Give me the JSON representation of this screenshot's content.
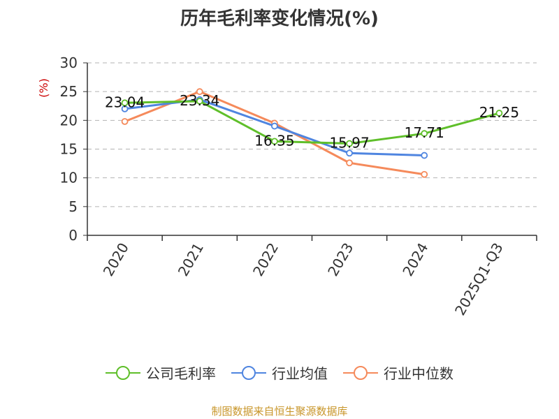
{
  "title": "历年毛利率变化情况(%)",
  "source": "制图数据来自恒生聚源数据库",
  "colors": {
    "company": "#5fbf2a",
    "industry_avg": "#4f85e0",
    "industry_median": "#f58a5b",
    "ylabel": "#cc0000",
    "grid": "#b3b3b3",
    "axis": "#333333",
    "source": "#c8962a"
  },
  "chart_data": {
    "type": "line",
    "title": "历年毛利率变化情况(%)",
    "xlabel": "",
    "ylabel": "(%)",
    "ylim": [
      0,
      30
    ],
    "yticks": [
      0,
      5,
      10,
      15,
      20,
      25,
      30
    ],
    "grid": "horizontal-dashed",
    "legend_position": "bottom",
    "categories": [
      "2020",
      "2021",
      "2022",
      "2023",
      "2024",
      "2025Q1-Q3"
    ],
    "series": [
      {
        "name": "公司毛利率",
        "key": "company",
        "values": [
          23.04,
          23.34,
          16.35,
          15.97,
          17.71,
          21.25
        ],
        "labels": [
          "23.04",
          "23.34",
          "16.35",
          "15.97",
          "17.71",
          "21.25"
        ]
      },
      {
        "name": "行业均值",
        "key": "industry_avg",
        "values": [
          22.0,
          23.6,
          19.0,
          14.3,
          13.9,
          null
        ]
      },
      {
        "name": "行业中位数",
        "key": "industry_median",
        "values": [
          19.8,
          25.0,
          19.5,
          12.6,
          10.6,
          null
        ]
      }
    ]
  }
}
